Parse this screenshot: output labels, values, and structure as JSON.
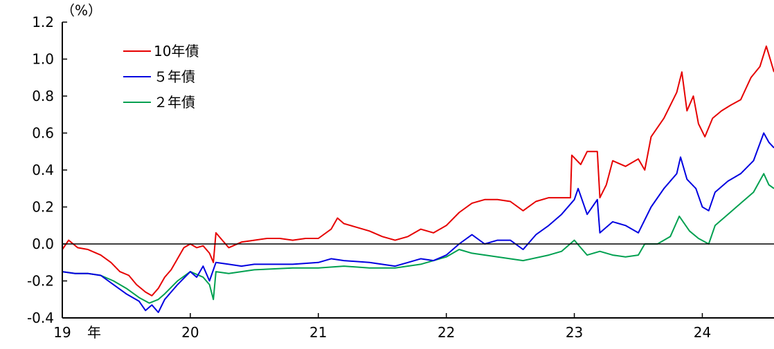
{
  "chart_data": {
    "type": "line",
    "unit_label": "（%）",
    "x_tick_labels": [
      "19",
      "20",
      "21",
      "22",
      "23",
      "24"
    ],
    "x_year_suffix": "年",
    "xlim": [
      2019.0,
      2024.56
    ],
    "ylim": [
      -0.4,
      1.2
    ],
    "y_ticks": [
      -0.4,
      -0.2,
      0.0,
      0.2,
      0.4,
      0.6,
      0.8,
      1.0,
      1.2
    ],
    "y_tick_labels": [
      "-0.4",
      "-0.2",
      "0.0",
      "0.2",
      "0.4",
      "0.6",
      "0.8",
      "1.0",
      "1.2"
    ],
    "zero_line": true,
    "grid": false,
    "legend_position": "top-left",
    "series": [
      {
        "name": "10年債",
        "color": "#e60000",
        "points": [
          [
            2019.0,
            -0.03
          ],
          [
            2019.05,
            0.02
          ],
          [
            2019.12,
            -0.02
          ],
          [
            2019.2,
            -0.03
          ],
          [
            2019.3,
            -0.06
          ],
          [
            2019.38,
            -0.1
          ],
          [
            2019.45,
            -0.15
          ],
          [
            2019.52,
            -0.17
          ],
          [
            2019.58,
            -0.22
          ],
          [
            2019.65,
            -0.26
          ],
          [
            2019.7,
            -0.28
          ],
          [
            2019.75,
            -0.24
          ],
          [
            2019.8,
            -0.18
          ],
          [
            2019.85,
            -0.14
          ],
          [
            2019.9,
            -0.08
          ],
          [
            2019.95,
            -0.02
          ],
          [
            2020.0,
            0.0
          ],
          [
            2020.05,
            -0.02
          ],
          [
            2020.1,
            -0.01
          ],
          [
            2020.15,
            -0.05
          ],
          [
            2020.18,
            -0.1
          ],
          [
            2020.2,
            0.06
          ],
          [
            2020.25,
            0.02
          ],
          [
            2020.3,
            -0.02
          ],
          [
            2020.4,
            0.01
          ],
          [
            2020.5,
            0.02
          ],
          [
            2020.6,
            0.03
          ],
          [
            2020.7,
            0.03
          ],
          [
            2020.8,
            0.02
          ],
          [
            2020.9,
            0.03
          ],
          [
            2021.0,
            0.03
          ],
          [
            2021.1,
            0.08
          ],
          [
            2021.15,
            0.14
          ],
          [
            2021.2,
            0.11
          ],
          [
            2021.3,
            0.09
          ],
          [
            2021.4,
            0.07
          ],
          [
            2021.5,
            0.04
          ],
          [
            2021.6,
            0.02
          ],
          [
            2021.7,
            0.04
          ],
          [
            2021.8,
            0.08
          ],
          [
            2021.9,
            0.06
          ],
          [
            2022.0,
            0.1
          ],
          [
            2022.1,
            0.17
          ],
          [
            2022.2,
            0.22
          ],
          [
            2022.3,
            0.24
          ],
          [
            2022.4,
            0.24
          ],
          [
            2022.5,
            0.23
          ],
          [
            2022.6,
            0.18
          ],
          [
            2022.7,
            0.23
          ],
          [
            2022.8,
            0.25
          ],
          [
            2022.9,
            0.25
          ],
          [
            2022.97,
            0.25
          ],
          [
            2022.98,
            0.48
          ],
          [
            2023.05,
            0.43
          ],
          [
            2023.1,
            0.5
          ],
          [
            2023.18,
            0.5
          ],
          [
            2023.2,
            0.25
          ],
          [
            2023.25,
            0.32
          ],
          [
            2023.3,
            0.45
          ],
          [
            2023.4,
            0.42
          ],
          [
            2023.5,
            0.46
          ],
          [
            2023.55,
            0.4
          ],
          [
            2023.6,
            0.58
          ],
          [
            2023.7,
            0.68
          ],
          [
            2023.8,
            0.82
          ],
          [
            2023.84,
            0.93
          ],
          [
            2023.88,
            0.72
          ],
          [
            2023.93,
            0.8
          ],
          [
            2023.97,
            0.65
          ],
          [
            2024.02,
            0.58
          ],
          [
            2024.08,
            0.68
          ],
          [
            2024.15,
            0.72
          ],
          [
            2024.22,
            0.75
          ],
          [
            2024.3,
            0.78
          ],
          [
            2024.38,
            0.9
          ],
          [
            2024.45,
            0.96
          ],
          [
            2024.5,
            1.07
          ],
          [
            2024.53,
            1.0
          ],
          [
            2024.56,
            0.93
          ]
        ]
      },
      {
        "name": "５年債",
        "color": "#0000e0",
        "points": [
          [
            2019.0,
            -0.15
          ],
          [
            2019.1,
            -0.16
          ],
          [
            2019.2,
            -0.16
          ],
          [
            2019.3,
            -0.17
          ],
          [
            2019.4,
            -0.22
          ],
          [
            2019.5,
            -0.27
          ],
          [
            2019.6,
            -0.31
          ],
          [
            2019.65,
            -0.36
          ],
          [
            2019.7,
            -0.33
          ],
          [
            2019.75,
            -0.37
          ],
          [
            2019.8,
            -0.3
          ],
          [
            2019.9,
            -0.22
          ],
          [
            2020.0,
            -0.15
          ],
          [
            2020.05,
            -0.18
          ],
          [
            2020.1,
            -0.12
          ],
          [
            2020.15,
            -0.2
          ],
          [
            2020.2,
            -0.1
          ],
          [
            2020.3,
            -0.11
          ],
          [
            2020.4,
            -0.12
          ],
          [
            2020.5,
            -0.11
          ],
          [
            2020.6,
            -0.11
          ],
          [
            2020.8,
            -0.11
          ],
          [
            2021.0,
            -0.1
          ],
          [
            2021.1,
            -0.08
          ],
          [
            2021.2,
            -0.09
          ],
          [
            2021.4,
            -0.1
          ],
          [
            2021.6,
            -0.12
          ],
          [
            2021.7,
            -0.1
          ],
          [
            2021.8,
            -0.08
          ],
          [
            2021.9,
            -0.09
          ],
          [
            2022.0,
            -0.06
          ],
          [
            2022.1,
            0.0
          ],
          [
            2022.2,
            0.05
          ],
          [
            2022.3,
            0.0
          ],
          [
            2022.4,
            0.02
          ],
          [
            2022.5,
            0.02
          ],
          [
            2022.6,
            -0.03
          ],
          [
            2022.7,
            0.05
          ],
          [
            2022.8,
            0.1
          ],
          [
            2022.9,
            0.16
          ],
          [
            2023.0,
            0.24
          ],
          [
            2023.03,
            0.3
          ],
          [
            2023.1,
            0.16
          ],
          [
            2023.18,
            0.24
          ],
          [
            2023.2,
            0.06
          ],
          [
            2023.3,
            0.12
          ],
          [
            2023.4,
            0.1
          ],
          [
            2023.5,
            0.06
          ],
          [
            2023.6,
            0.2
          ],
          [
            2023.7,
            0.3
          ],
          [
            2023.8,
            0.38
          ],
          [
            2023.83,
            0.47
          ],
          [
            2023.88,
            0.35
          ],
          [
            2023.95,
            0.3
          ],
          [
            2024.0,
            0.2
          ],
          [
            2024.05,
            0.18
          ],
          [
            2024.1,
            0.28
          ],
          [
            2024.2,
            0.34
          ],
          [
            2024.3,
            0.38
          ],
          [
            2024.4,
            0.45
          ],
          [
            2024.48,
            0.6
          ],
          [
            2024.52,
            0.55
          ],
          [
            2024.56,
            0.52
          ]
        ]
      },
      {
        "name": "２年債",
        "color": "#00a050",
        "points": [
          [
            2019.0,
            -0.15
          ],
          [
            2019.1,
            -0.16
          ],
          [
            2019.2,
            -0.16
          ],
          [
            2019.3,
            -0.17
          ],
          [
            2019.4,
            -0.2
          ],
          [
            2019.5,
            -0.24
          ],
          [
            2019.6,
            -0.29
          ],
          [
            2019.68,
            -0.32
          ],
          [
            2019.75,
            -0.3
          ],
          [
            2019.8,
            -0.27
          ],
          [
            2019.9,
            -0.2
          ],
          [
            2020.0,
            -0.15
          ],
          [
            2020.1,
            -0.18
          ],
          [
            2020.15,
            -0.22
          ],
          [
            2020.18,
            -0.3
          ],
          [
            2020.2,
            -0.15
          ],
          [
            2020.3,
            -0.16
          ],
          [
            2020.5,
            -0.14
          ],
          [
            2020.8,
            -0.13
          ],
          [
            2021.0,
            -0.13
          ],
          [
            2021.2,
            -0.12
          ],
          [
            2021.4,
            -0.13
          ],
          [
            2021.6,
            -0.13
          ],
          [
            2021.8,
            -0.11
          ],
          [
            2022.0,
            -0.07
          ],
          [
            2022.1,
            -0.03
          ],
          [
            2022.2,
            -0.05
          ],
          [
            2022.4,
            -0.07
          ],
          [
            2022.6,
            -0.09
          ],
          [
            2022.8,
            -0.06
          ],
          [
            2022.9,
            -0.04
          ],
          [
            2023.0,
            0.02
          ],
          [
            2023.05,
            -0.02
          ],
          [
            2023.1,
            -0.06
          ],
          [
            2023.2,
            -0.04
          ],
          [
            2023.3,
            -0.06
          ],
          [
            2023.4,
            -0.07
          ],
          [
            2023.5,
            -0.06
          ],
          [
            2023.55,
            0.0
          ],
          [
            2023.65,
            0.0
          ],
          [
            2023.75,
            0.04
          ],
          [
            2023.82,
            0.15
          ],
          [
            2023.9,
            0.07
          ],
          [
            2023.97,
            0.03
          ],
          [
            2024.05,
            0.0
          ],
          [
            2024.1,
            0.1
          ],
          [
            2024.2,
            0.16
          ],
          [
            2024.3,
            0.22
          ],
          [
            2024.4,
            0.28
          ],
          [
            2024.48,
            0.38
          ],
          [
            2024.52,
            0.32
          ],
          [
            2024.56,
            0.3
          ]
        ]
      }
    ]
  }
}
